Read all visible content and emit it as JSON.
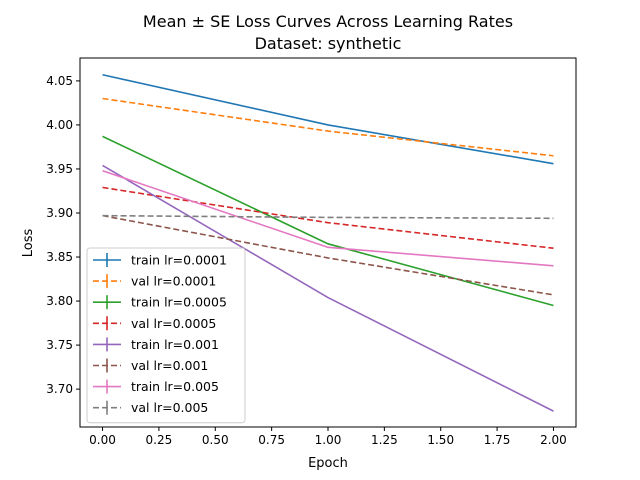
{
  "chart_data": {
    "type": "line",
    "title": "Mean ± SE Loss Curves Across Learning Rates",
    "subtitle": "Dataset: synthetic",
    "xlabel": "Epoch",
    "ylabel": "Loss",
    "xlim": [
      -0.1,
      2.1
    ],
    "ylim": [
      3.657,
      4.076
    ],
    "xticks": [
      "0.00",
      "0.25",
      "0.50",
      "0.75",
      "1.00",
      "1.25",
      "1.50",
      "1.75",
      "2.00"
    ],
    "yticks": [
      "3.70",
      "3.75",
      "3.80",
      "3.85",
      "3.90",
      "3.95",
      "4.00",
      "4.05"
    ],
    "grid": false,
    "legend_position": "lower-left",
    "x": [
      0,
      1,
      2
    ],
    "series": [
      {
        "name": "train lr=0.0001",
        "values": [
          4.057,
          4.0,
          3.956
        ],
        "color": "#1f77b4",
        "dash": "solid"
      },
      {
        "name": "val lr=0.0001",
        "values": [
          4.03,
          3.993,
          3.965
        ],
        "color": "#ff7f0e",
        "dash": "dashed"
      },
      {
        "name": "train lr=0.0005",
        "values": [
          3.987,
          3.865,
          3.795
        ],
        "color": "#2ca02c",
        "dash": "solid"
      },
      {
        "name": "val lr=0.0005",
        "values": [
          3.929,
          3.889,
          3.86
        ],
        "color": "#d62728",
        "dash": "dashed"
      },
      {
        "name": "train lr=0.001",
        "values": [
          3.954,
          3.804,
          3.675
        ],
        "color": "#9467bd",
        "dash": "solid"
      },
      {
        "name": "val lr=0.001",
        "values": [
          3.897,
          3.849,
          3.807
        ],
        "color": "#8c564b",
        "dash": "dashed"
      },
      {
        "name": "train lr=0.005",
        "values": [
          3.948,
          3.861,
          3.84
        ],
        "color": "#e377c2",
        "dash": "solid"
      },
      {
        "name": "val lr=0.005",
        "values": [
          3.897,
          3.895,
          3.894
        ],
        "color": "#7f7f7f",
        "dash": "dashed"
      }
    ]
  }
}
